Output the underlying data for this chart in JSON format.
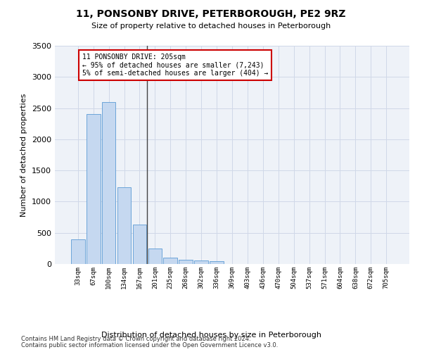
{
  "title": "11, PONSONBY DRIVE, PETERBOROUGH, PE2 9RZ",
  "subtitle": "Size of property relative to detached houses in Peterborough",
  "xlabel": "Distribution of detached houses by size in Peterborough",
  "ylabel": "Number of detached properties",
  "footnote1": "Contains HM Land Registry data © Crown copyright and database right 2024.",
  "footnote2": "Contains public sector information licensed under the Open Government Licence v3.0.",
  "categories": [
    "33sqm",
    "67sqm",
    "100sqm",
    "134sqm",
    "167sqm",
    "201sqm",
    "235sqm",
    "268sqm",
    "302sqm",
    "336sqm",
    "369sqm",
    "403sqm",
    "436sqm",
    "470sqm",
    "504sqm",
    "537sqm",
    "571sqm",
    "604sqm",
    "638sqm",
    "672sqm",
    "705sqm"
  ],
  "bar_values": [
    390,
    2400,
    2600,
    1230,
    630,
    250,
    105,
    65,
    55,
    45,
    0,
    0,
    0,
    0,
    0,
    0,
    0,
    0,
    0,
    0,
    0
  ],
  "bar_color": "#c5d8f0",
  "bar_edge_color": "#5b9bd5",
  "grid_color": "#d0d8e8",
  "background_color": "#eef2f8",
  "annotation_line1": "11 PONSONBY DRIVE: 205sqm",
  "annotation_line2": "← 95% of detached houses are smaller (7,243)",
  "annotation_line3": "5% of semi-detached houses are larger (404) →",
  "vline_bar_index": 5,
  "ylim": [
    0,
    3500
  ],
  "yticks": [
    0,
    500,
    1000,
    1500,
    2000,
    2500,
    3000,
    3500
  ],
  "annotation_box_facecolor": "#ffffff",
  "annotation_box_edgecolor": "#cc0000",
  "vline_color": "#444444",
  "title_fontsize": 10,
  "subtitle_fontsize": 8,
  "ylabel_fontsize": 8,
  "xlabel_fontsize": 8,
  "footnote_fontsize": 6,
  "ytick_fontsize": 8,
  "xtick_fontsize": 6.5
}
